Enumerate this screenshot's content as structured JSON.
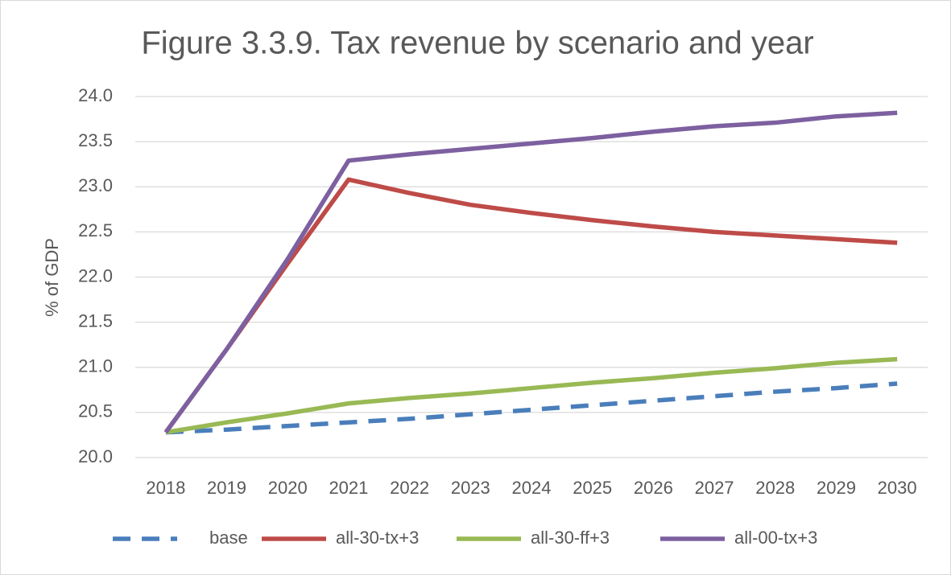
{
  "chart_data": {
    "type": "line",
    "title": "Figure 3.3.9. Tax revenue by scenario and year",
    "y_label": "% of GDP",
    "categories": [
      "2018",
      "2019",
      "2020",
      "2021",
      "2022",
      "2023",
      "2024",
      "2025",
      "2026",
      "2027",
      "2028",
      "2029",
      "2030"
    ],
    "series": [
      {
        "name": "base",
        "color": "#4a7ebb",
        "dashed": true,
        "values": [
          20.28,
          20.31,
          20.35,
          20.39,
          20.43,
          20.48,
          20.53,
          20.58,
          20.63,
          20.68,
          20.73,
          20.77,
          20.82
        ]
      },
      {
        "name": "all-30-tx+3",
        "color": "#be4b48",
        "dashed": false,
        "values": [
          20.28,
          21.2,
          22.15,
          23.08,
          22.93,
          22.8,
          22.71,
          22.63,
          22.56,
          22.5,
          22.46,
          22.42,
          22.38
        ]
      },
      {
        "name": "all-30-ff+3",
        "color": "#98b954",
        "dashed": false,
        "values": [
          20.28,
          20.39,
          20.49,
          20.6,
          20.66,
          20.71,
          20.77,
          20.83,
          20.88,
          20.94,
          20.99,
          21.05,
          21.09
        ]
      },
      {
        "name": "all-00-tx+3",
        "color": "#7d60a0",
        "dashed": false,
        "values": [
          20.28,
          21.2,
          22.2,
          23.29,
          23.36,
          23.42,
          23.48,
          23.54,
          23.61,
          23.67,
          23.71,
          23.78,
          23.82
        ]
      }
    ],
    "ylim": [
      20,
      24
    ],
    "yticks": [
      {
        "value": 20,
        "label": "20.0"
      },
      20.5,
      {
        "value": 21,
        "label": "21.0"
      },
      21.5,
      {
        "value": 22,
        "label": "22.0"
      },
      22.5,
      {
        "value": 23,
        "label": "23.0"
      },
      23.5,
      {
        "value": 24,
        "label": "24.0"
      }
    ],
    "grid": true,
    "legend": "bottom"
  }
}
